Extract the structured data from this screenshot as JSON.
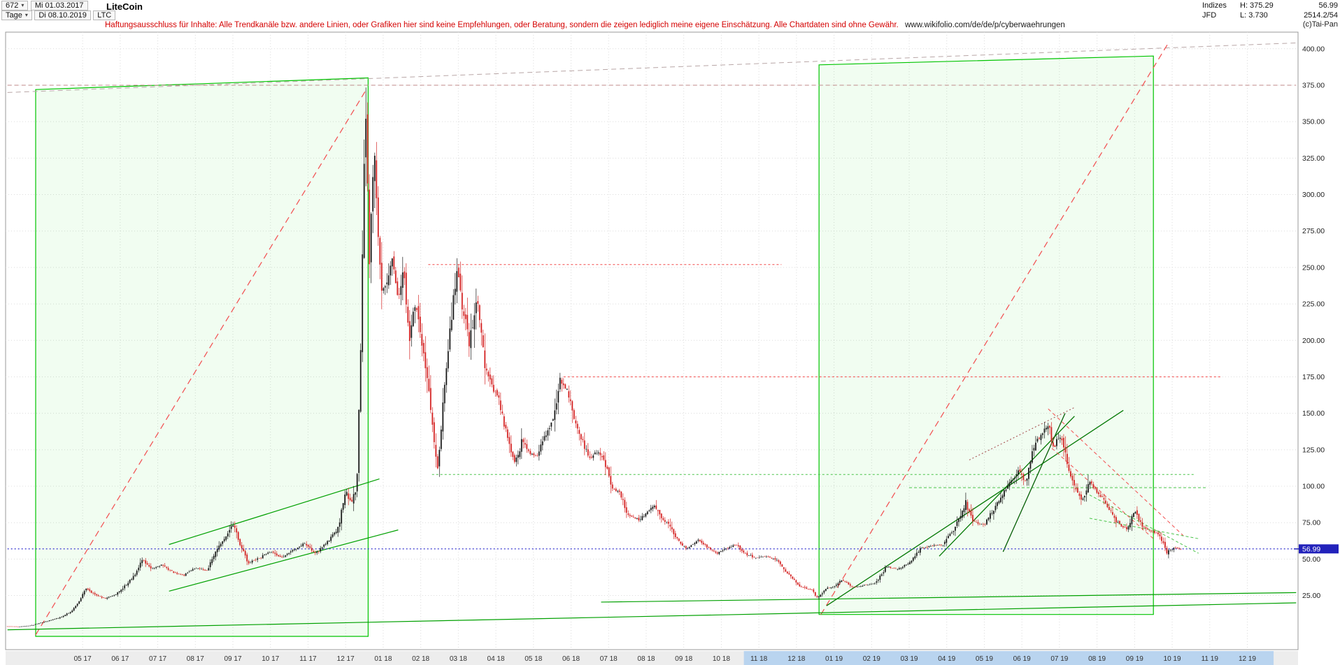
{
  "toolbar": {
    "bars_count": "672",
    "start_date": "Mi 01.03.2017",
    "period": "Tage",
    "end_date": "Di 08.10.2019",
    "symbol": "LTC",
    "title": "LiteCoin"
  },
  "info_panel": {
    "source_row1": "Indizes",
    "source_row2": "JFD",
    "high": "H: 375.29",
    "low": "L: 3.730",
    "last": "56.99",
    "volume": "2514.2/54",
    "copyright": "(c)Tai-Pan"
  },
  "disclaimer": {
    "text": "Haftungsausschluss für Inhalte: Alle Trendkanäle bzw. andere Linien, oder Grafiken hier sind keine Empfehlungen, oder Beratung, sondern die zeigen lediglich meine eigene Einschätzung. Alle Chartdaten sind ohne Gewähr.",
    "url": "www.wikifolio.com/de/de/p/cyberwaehrungen"
  },
  "chart_data": {
    "type": "candlestick",
    "title": "LiteCoin",
    "symbol": "LTC",
    "period": "Tage",
    "date_start": "01.03.2017",
    "date_end": "08.10.2019",
    "bars": 672,
    "seed": 42,
    "high": 375.29,
    "low": 3.73,
    "last_price": 56.99,
    "price_tag_label": "56.99",
    "t_data_end": 31.23,
    "x_range": [
      -0.05,
      34.35
    ],
    "y_range": [
      -12.1,
      411.4
    ],
    "y_ticks": [
      {
        "v": 400,
        "l": "400.00"
      },
      {
        "v": 375,
        "l": "375.00"
      },
      {
        "v": 350,
        "l": "350.00"
      },
      {
        "v": 325,
        "l": "325.00"
      },
      {
        "v": 300,
        "l": "300.00"
      },
      {
        "v": 275,
        "l": "275.00"
      },
      {
        "v": 250,
        "l": "250.00"
      },
      {
        "v": 225,
        "l": "225.00"
      },
      {
        "v": 200,
        "l": "200.00"
      },
      {
        "v": 175,
        "l": "175.00"
      },
      {
        "v": 150,
        "l": "150.00"
      },
      {
        "v": 125,
        "l": "125.00"
      },
      {
        "v": 100,
        "l": "100.00"
      },
      {
        "v": 75,
        "l": "75.00"
      },
      {
        "v": 50,
        "l": "50.00"
      },
      {
        "v": 25,
        "l": "25.00"
      }
    ],
    "x_labels": [
      {
        "t": 2,
        "l": "05 17"
      },
      {
        "t": 3,
        "l": "06 17"
      },
      {
        "t": 4,
        "l": "07 17"
      },
      {
        "t": 5,
        "l": "08 17"
      },
      {
        "t": 6,
        "l": "09 17"
      },
      {
        "t": 7,
        "l": "10 17"
      },
      {
        "t": 8,
        "l": "11 17"
      },
      {
        "t": 9,
        "l": "12 17"
      },
      {
        "t": 10,
        "l": "01 18"
      },
      {
        "t": 11,
        "l": "02 18"
      },
      {
        "t": 12,
        "l": "03 18"
      },
      {
        "t": 13,
        "l": "04 18"
      },
      {
        "t": 14,
        "l": "05 18"
      },
      {
        "t": 15,
        "l": "06 18"
      },
      {
        "t": 16,
        "l": "07 18"
      },
      {
        "t": 17,
        "l": "08 18"
      },
      {
        "t": 18,
        "l": "09 18"
      },
      {
        "t": 19,
        "l": "10 18"
      },
      {
        "t": 20,
        "l": "11 18"
      },
      {
        "t": 21,
        "l": "12 18"
      },
      {
        "t": 22,
        "l": "01 19"
      },
      {
        "t": 23,
        "l": "02 19"
      },
      {
        "t": 24,
        "l": "03 19"
      },
      {
        "t": 25,
        "l": "04 19"
      },
      {
        "t": 26,
        "l": "05 19"
      },
      {
        "t": 27,
        "l": "06 19"
      },
      {
        "t": 28,
        "l": "07 19"
      },
      {
        "t": 29,
        "l": "08 19"
      },
      {
        "t": 30,
        "l": "09 19"
      },
      {
        "t": 31,
        "l": "10 19"
      },
      {
        "t": 32,
        "l": "11 19"
      },
      {
        "t": 33,
        "l": "12 19"
      }
    ],
    "highlight_band": {
      "t1": 19.6,
      "t2": 33.7
    },
    "anchors": [
      [
        0,
        3.9
      ],
      [
        0.3,
        3.73
      ],
      [
        0.6,
        4.4
      ],
      [
        1.0,
        7
      ],
      [
        1.4,
        10
      ],
      [
        1.7,
        14
      ],
      [
        1.9,
        21
      ],
      [
        2.1,
        30
      ],
      [
        2.3,
        26
      ],
      [
        2.6,
        23
      ],
      [
        2.9,
        26
      ],
      [
        3.1,
        31
      ],
      [
        3.4,
        39
      ],
      [
        3.6,
        50
      ],
      [
        3.8,
        43
      ],
      [
        4.1,
        46
      ],
      [
        4.4,
        41
      ],
      [
        4.7,
        39
      ],
      [
        5.0,
        44
      ],
      [
        5.3,
        42
      ],
      [
        5.6,
        58
      ],
      [
        5.8,
        64
      ],
      [
        6.0,
        74
      ],
      [
        6.2,
        60
      ],
      [
        6.4,
        47
      ],
      [
        6.7,
        51
      ],
      [
        7.0,
        55
      ],
      [
        7.3,
        51
      ],
      [
        7.6,
        56
      ],
      [
        7.9,
        61
      ],
      [
        8.2,
        54
      ],
      [
        8.5,
        61
      ],
      [
        8.8,
        71
      ],
      [
        9.0,
        97
      ],
      [
        9.15,
        88
      ],
      [
        9.3,
        100
      ],
      [
        9.42,
        210
      ],
      [
        9.52,
        368
      ],
      [
        9.58,
        330
      ],
      [
        9.62,
        240
      ],
      [
        9.7,
        300
      ],
      [
        9.78,
        330
      ],
      [
        9.85,
        280
      ],
      [
        9.95,
        232
      ],
      [
        10.1,
        240
      ],
      [
        10.25,
        255
      ],
      [
        10.4,
        230
      ],
      [
        10.55,
        248
      ],
      [
        10.7,
        196
      ],
      [
        10.85,
        228
      ],
      [
        11.0,
        205
      ],
      [
        11.15,
        178
      ],
      [
        11.3,
        142
      ],
      [
        11.45,
        112
      ],
      [
        11.6,
        158
      ],
      [
        11.8,
        212
      ],
      [
        11.95,
        248
      ],
      [
        12.1,
        224
      ],
      [
        12.3,
        198
      ],
      [
        12.5,
        228
      ],
      [
        12.7,
        184
      ],
      [
        12.9,
        168
      ],
      [
        13.1,
        158
      ],
      [
        13.3,
        134
      ],
      [
        13.5,
        117
      ],
      [
        13.7,
        131
      ],
      [
        13.9,
        123
      ],
      [
        14.1,
        121
      ],
      [
        14.3,
        134
      ],
      [
        14.5,
        144
      ],
      [
        14.7,
        172
      ],
      [
        14.9,
        166
      ],
      [
        15.1,
        146
      ],
      [
        15.3,
        131
      ],
      [
        15.5,
        119
      ],
      [
        15.7,
        124
      ],
      [
        15.9,
        116
      ],
      [
        16.1,
        99
      ],
      [
        16.3,
        95
      ],
      [
        16.5,
        81
      ],
      [
        16.8,
        77
      ],
      [
        17.0,
        81
      ],
      [
        17.2,
        87
      ],
      [
        17.4,
        79
      ],
      [
        17.6,
        73
      ],
      [
        17.9,
        61
      ],
      [
        18.1,
        57
      ],
      [
        18.4,
        63
      ],
      [
        18.6,
        59
      ],
      [
        18.9,
        54
      ],
      [
        19.1,
        57
      ],
      [
        19.4,
        60
      ],
      [
        19.6,
        54
      ],
      [
        19.9,
        51
      ],
      [
        20.2,
        52
      ],
      [
        20.5,
        49
      ],
      [
        20.7,
        42
      ],
      [
        20.9,
        37
      ],
      [
        21.1,
        31
      ],
      [
        21.4,
        29
      ],
      [
        21.55,
        23.5
      ],
      [
        21.8,
        30
      ],
      [
        22.0,
        31
      ],
      [
        22.2,
        36
      ],
      [
        22.5,
        30.5
      ],
      [
        22.8,
        32
      ],
      [
        23.1,
        33.5
      ],
      [
        23.4,
        45
      ],
      [
        23.7,
        43
      ],
      [
        24.0,
        47
      ],
      [
        24.3,
        57
      ],
      [
        24.6,
        59
      ],
      [
        24.9,
        60
      ],
      [
        25.2,
        71
      ],
      [
        25.5,
        89
      ],
      [
        25.7,
        76
      ],
      [
        26.0,
        73
      ],
      [
        26.3,
        87
      ],
      [
        26.6,
        99
      ],
      [
        26.9,
        111
      ],
      [
        27.1,
        103
      ],
      [
        27.35,
        130
      ],
      [
        27.55,
        136
      ],
      [
        27.7,
        143
      ],
      [
        27.85,
        125
      ],
      [
        28.0,
        136
      ],
      [
        28.2,
        117
      ],
      [
        28.4,
        98
      ],
      [
        28.6,
        90
      ],
      [
        28.8,
        104
      ],
      [
        29.0,
        96
      ],
      [
        29.2,
        90
      ],
      [
        29.5,
        76
      ],
      [
        29.8,
        70
      ],
      [
        30.0,
        83
      ],
      [
        30.2,
        73
      ],
      [
        30.45,
        69
      ],
      [
        30.65,
        67
      ],
      [
        30.85,
        55
      ],
      [
        31.0,
        57
      ],
      [
        31.1,
        58
      ],
      [
        31.23,
        56.99
      ]
    ],
    "boxes": [
      {
        "name": "trend-box-2017",
        "pts": [
          [
            0.75,
            372
          ],
          [
            9.6,
            380
          ],
          [
            9.6,
            -3
          ],
          [
            0.75,
            -3
          ]
        ]
      },
      {
        "name": "trend-box-2019",
        "pts": [
          [
            21.6,
            389
          ],
          [
            30.5,
            395
          ],
          [
            30.5,
            12
          ],
          [
            21.6,
            12
          ]
        ]
      }
    ],
    "lines": [
      {
        "name": "long-term-upper-gray-dashed",
        "t1": 0,
        "p1": 370,
        "t2": 34.3,
        "p2": 404,
        "c": "#b8a6a6",
        "d": "7,5",
        "w": 1
      },
      {
        "name": "resistance-375-dashed",
        "t1": 0,
        "p1": 375,
        "t2": 34.3,
        "p2": 375,
        "c": "#c08a8a",
        "d": "6,4",
        "w": 1
      },
      {
        "name": "red-uptrend-2017",
        "t1": 0.75,
        "p1": -2,
        "t2": 9.55,
        "p2": 372,
        "c": "#f24c4c",
        "d": "9,6",
        "w": 1.2
      },
      {
        "name": "red-uptrend-2019",
        "t1": 21.65,
        "p1": 12,
        "t2": 30.9,
        "p2": 404,
        "c": "#f24c4c",
        "d": "9,6",
        "w": 1.2
      },
      {
        "name": "resistance-250-dotted",
        "t1": 11.2,
        "p1": 252,
        "t2": 20.6,
        "p2": 252,
        "c": "#f24c4c",
        "d": "3,3",
        "w": 1
      },
      {
        "name": "resistance-175-dotted",
        "t1": 14.8,
        "p1": 175,
        "t2": 32.3,
        "p2": 175,
        "c": "#f24c4c",
        "d": "3,3",
        "w": 1
      },
      {
        "name": "support-108-green-dotted",
        "t1": 11.3,
        "p1": 108,
        "t2": 31.6,
        "p2": 108,
        "c": "#49c349",
        "d": "3,3",
        "w": 1
      },
      {
        "name": "support-99-green-dashed",
        "t1": 24,
        "p1": 99,
        "t2": 31.9,
        "p2": 99,
        "c": "#49c349",
        "d": "4,3",
        "w": 1
      },
      {
        "name": "bottom-support-long",
        "t1": 0,
        "p1": 1.5,
        "t2": 34.3,
        "p2": 20,
        "c": "#00a000",
        "d": "",
        "w": 1.2
      },
      {
        "name": "bottom-support-2018",
        "t1": 15.8,
        "p1": 20.5,
        "t2": 34.3,
        "p2": 27,
        "c": "#00a000",
        "d": "",
        "w": 1.2
      },
      {
        "name": "channel-2017-upper",
        "t1": 4.3,
        "p1": 60,
        "t2": 9.9,
        "p2": 105,
        "c": "#00a000",
        "d": "",
        "w": 1.2
      },
      {
        "name": "channel-2017-lower",
        "t1": 4.3,
        "p1": 28,
        "t2": 10.4,
        "p2": 70,
        "c": "#00a000",
        "d": "",
        "w": 1.2
      },
      {
        "name": "uptrend-2019-long",
        "t1": 21.8,
        "p1": 18,
        "t2": 29.7,
        "p2": 152,
        "c": "#037803",
        "d": "",
        "w": 1.3
      },
      {
        "name": "wedge-2019-support",
        "t1": 24.8,
        "p1": 52,
        "t2": 28.4,
        "p2": 148,
        "c": "#037803",
        "d": "",
        "w": 1.3
      },
      {
        "name": "wedge-2019-steep",
        "t1": 26.5,
        "p1": 55,
        "t2": 28.15,
        "p2": 150,
        "c": "#055e05",
        "d": "",
        "w": 1.3
      },
      {
        "name": "downtrend-2019-red-1",
        "t1": 27.7,
        "p1": 153,
        "t2": 31.3,
        "p2": 66,
        "c": "#f24c4c",
        "d": "5,4",
        "w": 1
      },
      {
        "name": "downtrend-2019-red-2",
        "t1": 27.8,
        "p1": 126,
        "t2": 30.5,
        "p2": 64,
        "c": "#f24c4c",
        "d": "5,4",
        "w": 1
      },
      {
        "name": "minor-darkred-dotted",
        "t1": 25.6,
        "p1": 118,
        "t2": 28.4,
        "p2": 154,
        "c": "#a04545",
        "d": "2,3",
        "w": 1
      },
      {
        "name": "downtrend-2019-green-1",
        "t1": 28.8,
        "p1": 94,
        "t2": 31.7,
        "p2": 54,
        "c": "#49c349",
        "d": "4,3",
        "w": 1
      },
      {
        "name": "downtrend-2019-green-2",
        "t1": 28.8,
        "p1": 78,
        "t2": 31.7,
        "p2": 64,
        "c": "#49c349",
        "d": "4,3",
        "w": 1
      },
      {
        "name": "current-price-line",
        "t1": 0,
        "p1": 56.99,
        "t2": 34.3,
        "p2": 56.99,
        "c": "#3434cf",
        "d": "2,3",
        "w": 1.2
      }
    ],
    "colors": {
      "up": "#1b1b1b",
      "down": "#d42222",
      "grid": "#dcdcdc",
      "plot_border": "#999999",
      "box_border": "#00c400",
      "box_fill": "rgba(0,220,0,0.055)",
      "axis_text": "#222222",
      "axis_strip_bg": "#ededed",
      "axis_band": "#b9d4ef",
      "price_tag_bg": "#2222bb",
      "price_tag_text": "#ffffff"
    }
  }
}
